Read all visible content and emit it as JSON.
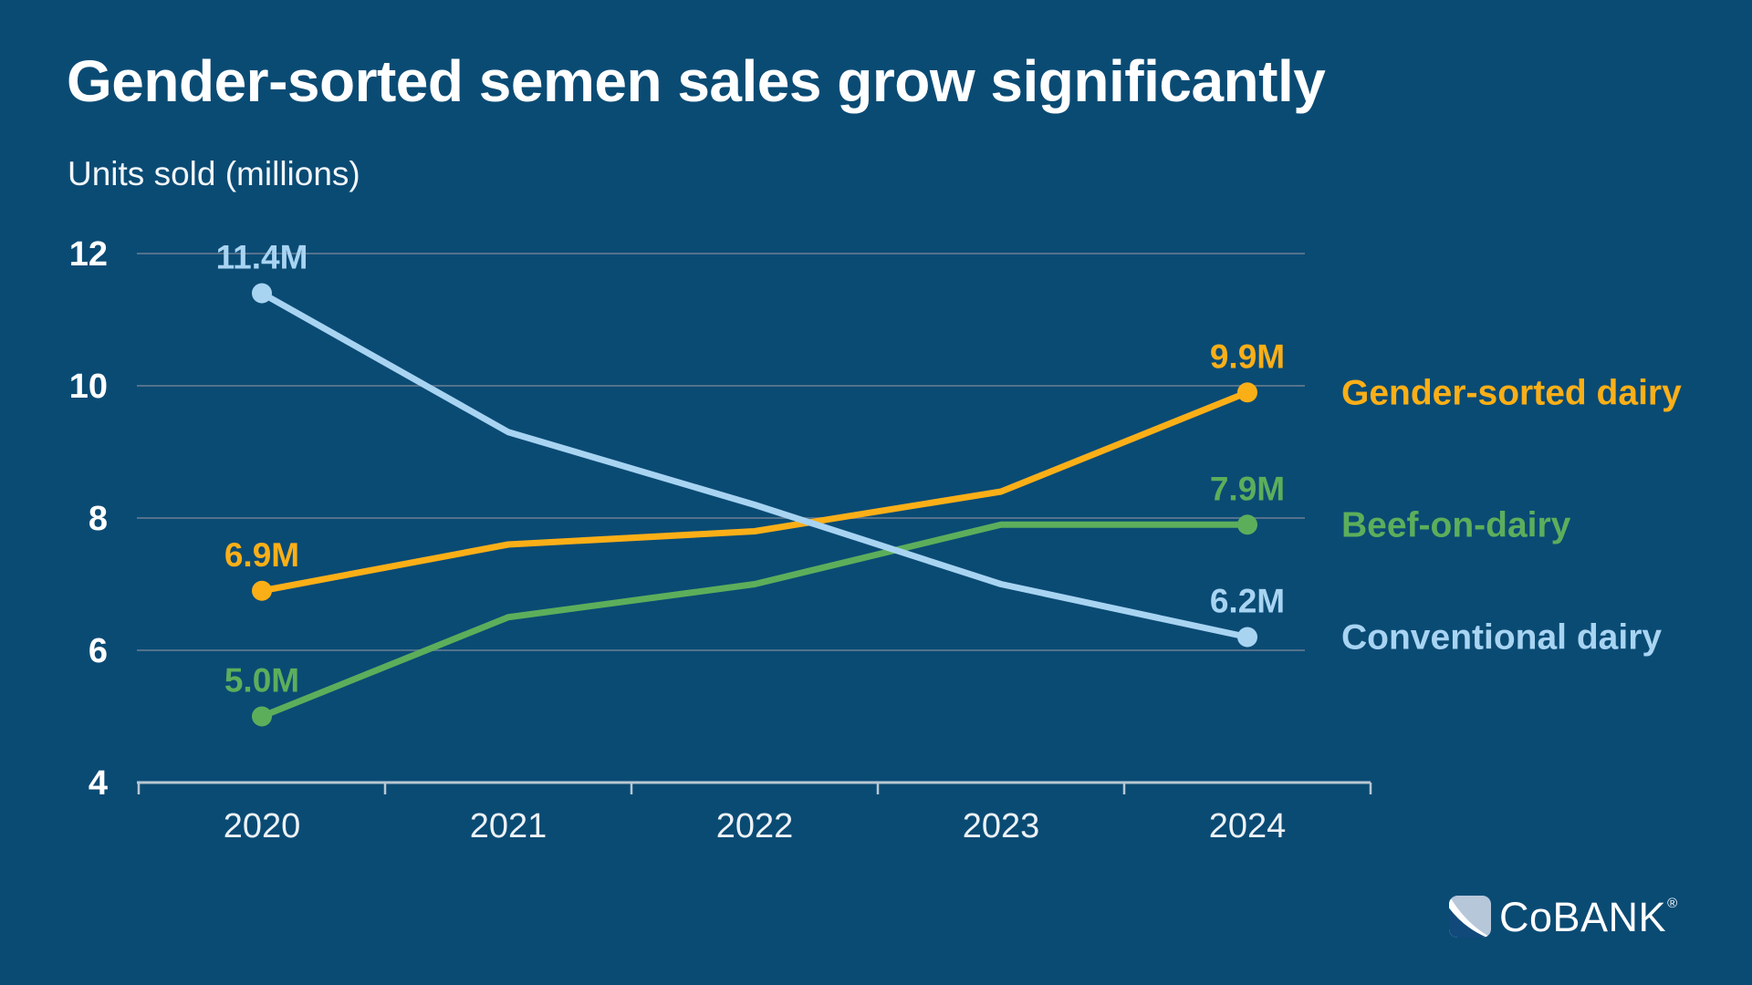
{
  "page": {
    "background_color": "#0A4B74",
    "title": "Gender-sorted semen sales grow significantly",
    "units_label": "Units sold (millions)"
  },
  "chart_data": {
    "type": "line",
    "title": "Gender-sorted semen sales grow significantly",
    "ylabel": "Units sold (millions)",
    "x": [
      2020,
      2021,
      2022,
      2023,
      2024
    ],
    "x_tick_labels": [
      "2020",
      "2021",
      "2022",
      "2023",
      "2024"
    ],
    "ylim": [
      4,
      12
    ],
    "yticks": [
      4,
      6,
      8,
      10,
      12
    ],
    "grid": true,
    "legend_position": "right of last data points",
    "series": [
      {
        "name": "Gender-sorted dairy",
        "color": "#FBAF17",
        "values": [
          6.9,
          7.6,
          7.8,
          8.4,
          9.9
        ],
        "first_point_label": "6.9M",
        "last_point_label": "9.9M"
      },
      {
        "name": "Beef-on-dairy",
        "color": "#5DAE5B",
        "values": [
          5.0,
          6.5,
          7.0,
          7.9,
          7.9
        ],
        "first_point_label": "5.0M",
        "last_point_label": "7.9M"
      },
      {
        "name": "Conventional dairy",
        "color": "#A8D4F2",
        "values": [
          11.4,
          9.3,
          8.2,
          7.0,
          6.2
        ],
        "first_point_label": "11.4M",
        "last_point_label": "6.2M"
      }
    ],
    "colors": {
      "gridline": "#54728B",
      "axis": "#B8C7D2",
      "y_tick_label": "#FFFFFF",
      "x_tick_label": "#EDF2F6"
    }
  },
  "logo": {
    "text": "CoBANK",
    "registered_mark": "®"
  }
}
